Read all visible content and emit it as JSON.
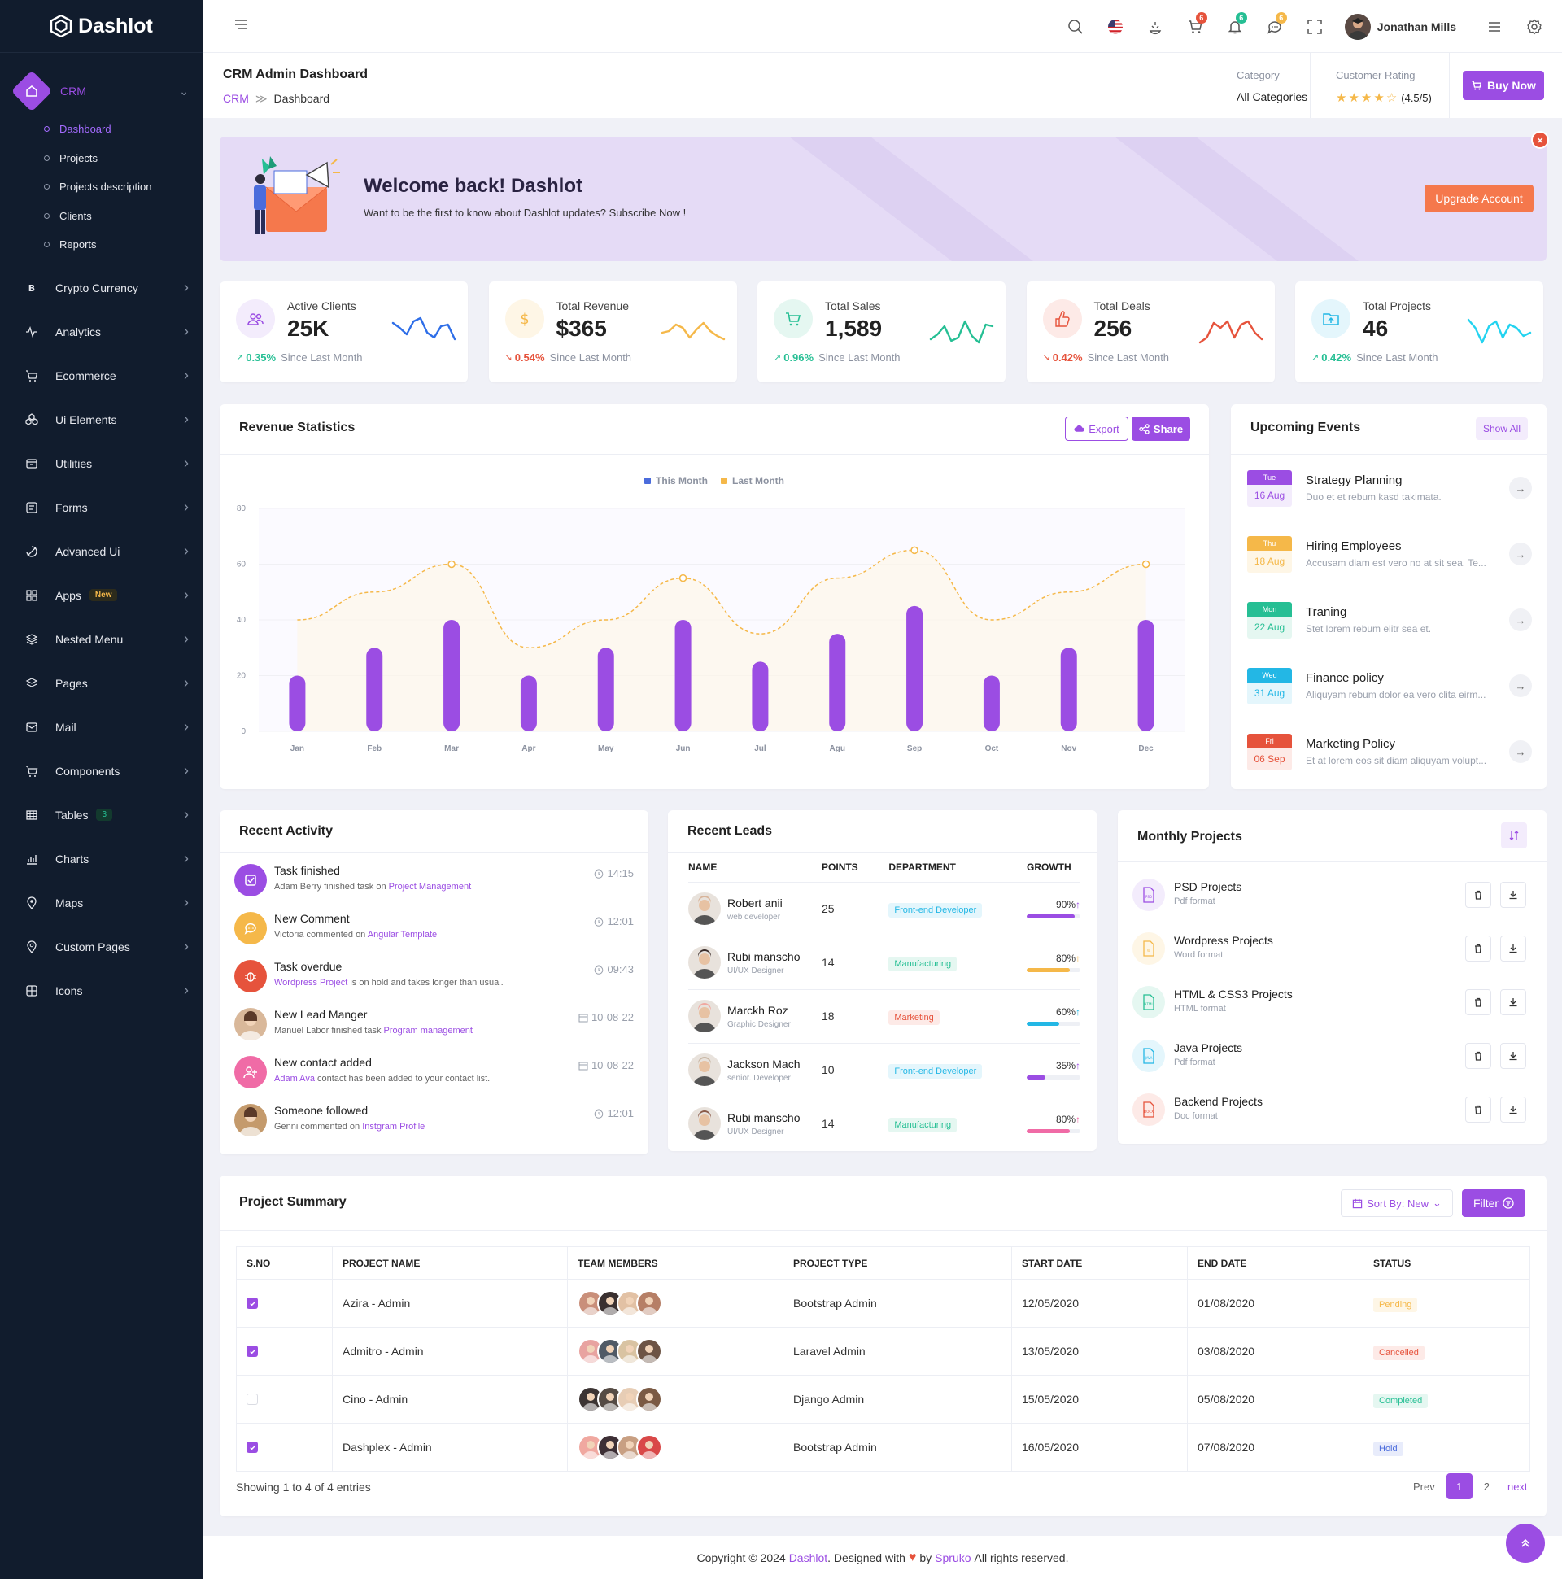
{
  "brand": {
    "name": "Dashlot"
  },
  "sidebar": {
    "crm": {
      "label": "CRM",
      "sub": [
        "Dashboard",
        "Projects",
        "Projects description",
        "Clients",
        "Reports"
      ]
    },
    "items": [
      {
        "label": "Crypto Currency",
        "icon": "bitcoin-icon"
      },
      {
        "label": "Analytics",
        "icon": "activity-icon"
      },
      {
        "label": "Ecommerce",
        "icon": "cart-icon"
      },
      {
        "label": "Ui Elements",
        "icon": "cubes-icon"
      },
      {
        "label": "Utilities",
        "icon": "box-icon"
      },
      {
        "label": "Forms",
        "icon": "form-icon"
      },
      {
        "label": "Advanced Ui",
        "icon": "layers-icon"
      },
      {
        "label": "Apps",
        "icon": "apps-icon",
        "badge": "New"
      },
      {
        "label": "Nested Menu",
        "icon": "stack-icon"
      },
      {
        "label": "Pages",
        "icon": "pages-icon"
      },
      {
        "label": "Mail",
        "icon": "mail-icon"
      },
      {
        "label": "Components",
        "icon": "cart-icon"
      },
      {
        "label": "Tables",
        "icon": "table-icon",
        "badge": "3"
      },
      {
        "label": "Charts",
        "icon": "chart-icon"
      },
      {
        "label": "Maps",
        "icon": "map-pin-icon"
      },
      {
        "label": "Custom Pages",
        "icon": "pin-icon"
      },
      {
        "label": "Icons",
        "icon": "grid-icon"
      }
    ]
  },
  "topbar": {
    "user": "Jonathan Mills",
    "cart_count": "6",
    "notif_count": "6",
    "msg_count": "6"
  },
  "header": {
    "title": "CRM Admin Dashboard",
    "breadcrumb_root": "CRM",
    "breadcrumb_sep": "≫",
    "breadcrumb_current": "Dashboard",
    "category_label": "Category",
    "category_value": "All Categories",
    "rating_label": "Customer Rating",
    "rating_value": "(4.5/5)",
    "rating": 4.5,
    "buy_label": "Buy Now"
  },
  "welcome": {
    "title": "Welcome back! Dashlot",
    "text": "Want to be the first to know about Dashlot updates? Subscribe Now !",
    "button": "Upgrade Account",
    "close": "×"
  },
  "stats": [
    {
      "label": "Active Clients",
      "value": "25K",
      "change": "0.35%",
      "trend": "up",
      "since": "Since Last Month",
      "color": "#9b4de3",
      "bg": "#f3ecfc",
      "line": "#2e6ee8"
    },
    {
      "label": "Total Revenue",
      "value": "$365",
      "change": "0.54%",
      "trend": "down",
      "since": "Since Last Month",
      "color": "#f5b849",
      "bg": "#fef6e6",
      "line": "#f5b849"
    },
    {
      "label": "Total Sales",
      "value": "1,589",
      "change": "0.96%",
      "trend": "up",
      "since": "Since Last Month",
      "color": "#26bf94",
      "bg": "#e5f7f1",
      "line": "#26bf94"
    },
    {
      "label": "Total Deals",
      "value": "256",
      "change": "0.42%",
      "trend": "down",
      "since": "Since Last Month",
      "color": "#e6533c",
      "bg": "#fdeae7",
      "line": "#e6533c"
    },
    {
      "label": "Total Projects",
      "value": "46",
      "change": "0.42%",
      "trend": "up",
      "since": "Since Last Month",
      "color": "#23b7e5",
      "bg": "#e4f6fc",
      "line": "#23d3f0"
    }
  ],
  "revenue": {
    "title": "Revenue Statistics",
    "export": "Export",
    "share": "Share"
  },
  "chart_data": {
    "type": "bar",
    "categories": [
      "Jan",
      "Feb",
      "Mar",
      "Apr",
      "May",
      "Jun",
      "Jul",
      "Agu",
      "Sep",
      "Oct",
      "Nov",
      "Dec"
    ],
    "series": [
      {
        "name": "This Month",
        "type": "bar",
        "color": "#9b4de3",
        "values": [
          20,
          30,
          40,
          20,
          30,
          40,
          25,
          35,
          45,
          20,
          30,
          40
        ]
      },
      {
        "name": "Last Month",
        "type": "line",
        "color": "#f5b849",
        "values": [
          40,
          50,
          60,
          30,
          40,
          55,
          35,
          55,
          65,
          40,
          50,
          60
        ]
      }
    ],
    "ylim": [
      0,
      80
    ],
    "yticks": [
      0,
      20,
      40,
      60,
      80
    ],
    "legend": "top-center"
  },
  "events": {
    "title": "Upcoming Events",
    "show_all": "Show All",
    "items": [
      {
        "day": "Tue",
        "date": "16 Aug",
        "title": "Strategy Planning",
        "text": "Duo et et rebum kasd takimata.",
        "color": "#9b4de3",
        "bg": "#f3ecfc"
      },
      {
        "day": "Thu",
        "date": "18 Aug",
        "title": "Hiring Employees",
        "text": "Accusam diam est vero no at sit sea. Te...",
        "color": "#f5b849",
        "bg": "#fef6e6"
      },
      {
        "day": "Mon",
        "date": "22 Aug",
        "title": "Traning",
        "text": "Stet lorem rebum elitr sea et.",
        "color": "#26bf94",
        "bg": "#e5f7f1"
      },
      {
        "day": "Wed",
        "date": "31 Aug",
        "title": "Finance policy",
        "text": "Aliquyam rebum dolor ea vero clita eirm...",
        "color": "#23b7e5",
        "bg": "#e4f6fc"
      },
      {
        "day": "Fri",
        "date": "06 Sep",
        "title": "Marketing Policy",
        "text": "Et at lorem eos sit diam aliquyam volupt...",
        "color": "#e6533c",
        "bg": "#fdeae7"
      }
    ]
  },
  "activity": {
    "title": "Recent Activity",
    "items": [
      {
        "title": "Task finished",
        "pre": "Adam Berry finished task on ",
        "link": "Project Management",
        "post": "",
        "time": "14:15",
        "icon": "check-square-icon",
        "color": "#9b4de3"
      },
      {
        "title": "New Comment",
        "pre": "Victoria commented on ",
        "link": "Angular Template",
        "post": "",
        "time": "12:01",
        "icon": "comment-icon",
        "color": "#f5b849"
      },
      {
        "title": "Task overdue",
        "pre": "",
        "link": "Wordpress Project",
        "post": " is on hold and takes longer than usual.",
        "time": "09:43",
        "icon": "bug-icon",
        "color": "#e6533c"
      },
      {
        "title": "New Lead Manger",
        "pre": "Manuel Labor finished task ",
        "link": "Program management",
        "post": "",
        "time": "10-08-22",
        "icon": "avatar",
        "color": "#d9b89a"
      },
      {
        "title": "New contact added",
        "pre": "",
        "link": "Adam Ava",
        "post": " contact has been added to your contact list.",
        "time": "10-08-22",
        "icon": "user-plus-icon",
        "color": "#f06ba6"
      },
      {
        "title": "Someone followed",
        "pre": "Genni commented on ",
        "link": "Instgram Profile",
        "post": "",
        "time": "12:01",
        "icon": "avatar",
        "color": "#c49a6c"
      }
    ]
  },
  "leads": {
    "title": "Recent Leads",
    "headers": [
      "NAME",
      "POINTS",
      "DEPARTMENT",
      "GROWTH"
    ],
    "rows": [
      {
        "name": "Robert anii",
        "role": "web developer",
        "points": "25",
        "dept": "Front-end Developer",
        "dcolor": "#23b7e5",
        "dbg": "#e4f6fc",
        "growth": "90%",
        "pct": 0.9,
        "bar": "#9b4de3"
      },
      {
        "name": "Rubi manscho",
        "role": "UI/UX Designer",
        "points": "14",
        "dept": "Manufacturing",
        "dcolor": "#26bf94",
        "dbg": "#e5f7f1",
        "growth": "80%",
        "pct": 0.8,
        "bar": "#f5b849"
      },
      {
        "name": "Marckh Roz",
        "role": "Graphic Designer",
        "points": "18",
        "dept": "Marketing",
        "dcolor": "#e6533c",
        "dbg": "#fdeae7",
        "growth": "60%",
        "pct": 0.6,
        "bar": "#23b7e5"
      },
      {
        "name": "Jackson Mach",
        "role": "senior. Developer",
        "points": "10",
        "dept": "Front-end Developer",
        "dcolor": "#23b7e5",
        "dbg": "#e4f6fc",
        "growth": "35%",
        "pct": 0.35,
        "bar": "#9b4de3"
      },
      {
        "name": "Rubi manscho",
        "role": "UI/UX Designer",
        "points": "14",
        "dept": "Manufacturing",
        "dcolor": "#26bf94",
        "dbg": "#e5f7f1",
        "growth": "80%",
        "pct": 0.8,
        "bar": "#f06ba6"
      }
    ]
  },
  "monthly": {
    "title": "Monthly Projects",
    "items": [
      {
        "name": "PSD Projects",
        "fmt": "Pdf format",
        "color": "#9b4de3",
        "bg": "#f3ecfc",
        "tag": "PSD"
      },
      {
        "name": "Wordpress Projects",
        "fmt": "Word format",
        "color": "#f5b849",
        "bg": "#fef6e6",
        "tag": "W"
      },
      {
        "name": "HTML & CSS3 Projects",
        "fmt": "HTML format",
        "color": "#26bf94",
        "bg": "#e5f7f1",
        "tag": "HTML"
      },
      {
        "name": "Java Projects",
        "fmt": "Pdf format",
        "color": "#23b7e5",
        "bg": "#e4f6fc",
        "tag": "JAVA"
      },
      {
        "name": "Backend Projects",
        "fmt": "Doc format",
        "color": "#e6533c",
        "bg": "#fdeae7",
        "tag": "DOCX"
      }
    ]
  },
  "summary": {
    "title": "Project Summary",
    "sort": "Sort By: New",
    "filter": "Filter",
    "headers": [
      "S.NO",
      "PROJECT NAME",
      "TEAM MEMBERS",
      "PROJECT TYPE",
      "START DATE",
      "END DATE",
      "STATUS"
    ],
    "rows": [
      {
        "checked": true,
        "name": "Azira - Admin",
        "type": "Bootstrap Admin",
        "start": "12/05/2020",
        "end": "01/08/2020",
        "status": "Pending",
        "scolor": "#f5b849",
        "sbg": "#fef6e6"
      },
      {
        "checked": true,
        "name": "Admitro - Admin",
        "type": "Laravel Admin",
        "start": "13/05/2020",
        "end": "03/08/2020",
        "status": "Cancelled",
        "scolor": "#e6533c",
        "sbg": "#fdeae7"
      },
      {
        "checked": false,
        "name": "Cino - Admin",
        "type": "Django Admin",
        "start": "15/05/2020",
        "end": "05/08/2020",
        "status": "Completed",
        "scolor": "#26bf94",
        "sbg": "#e5f7f1"
      },
      {
        "checked": true,
        "name": "Dashplex - Admin",
        "type": "Bootstrap Admin",
        "start": "16/05/2020",
        "end": "07/08/2020",
        "status": "Hold",
        "scolor": "#4b6cdc",
        "sbg": "#e8ecfb"
      }
    ],
    "showing": "Showing 1 to 4 of 4 entries",
    "prev": "Prev",
    "page1": "1",
    "page2": "2",
    "next": "next"
  },
  "footer": {
    "pre": "Copyright © 2024",
    "brand": "Dashlot",
    "mid": ". Designed with",
    "by": "by",
    "author": "Spruko",
    "post": "All rights reserved."
  }
}
